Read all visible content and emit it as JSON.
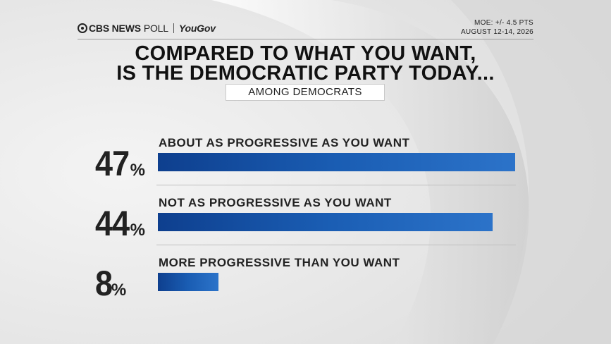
{
  "brand": {
    "network": "CBS NEWS",
    "poll": "POLL",
    "partner": "YouGov"
  },
  "meta": {
    "moe": "MOE: +/- 4.5 PTS",
    "date": "AUGUST 12-14, 2026"
  },
  "chart_data": {
    "type": "bar",
    "title_line1": "COMPARED TO WHAT YOU WANT,",
    "title_line2": "IS THE DEMOCRATIC PARTY TODAY...",
    "subtitle": "AMONG DEMOCRATS",
    "categories": [
      "ABOUT AS PROGRESSIVE AS YOU WANT",
      "NOT AS PROGRESSIVE AS YOU WANT",
      "MORE PROGRESSIVE THAN YOU WANT"
    ],
    "values": [
      47,
      44,
      8
    ],
    "value_labels": [
      "47",
      "44",
      "8"
    ],
    "unit": "%",
    "bar_color": "#1a5db3"
  }
}
